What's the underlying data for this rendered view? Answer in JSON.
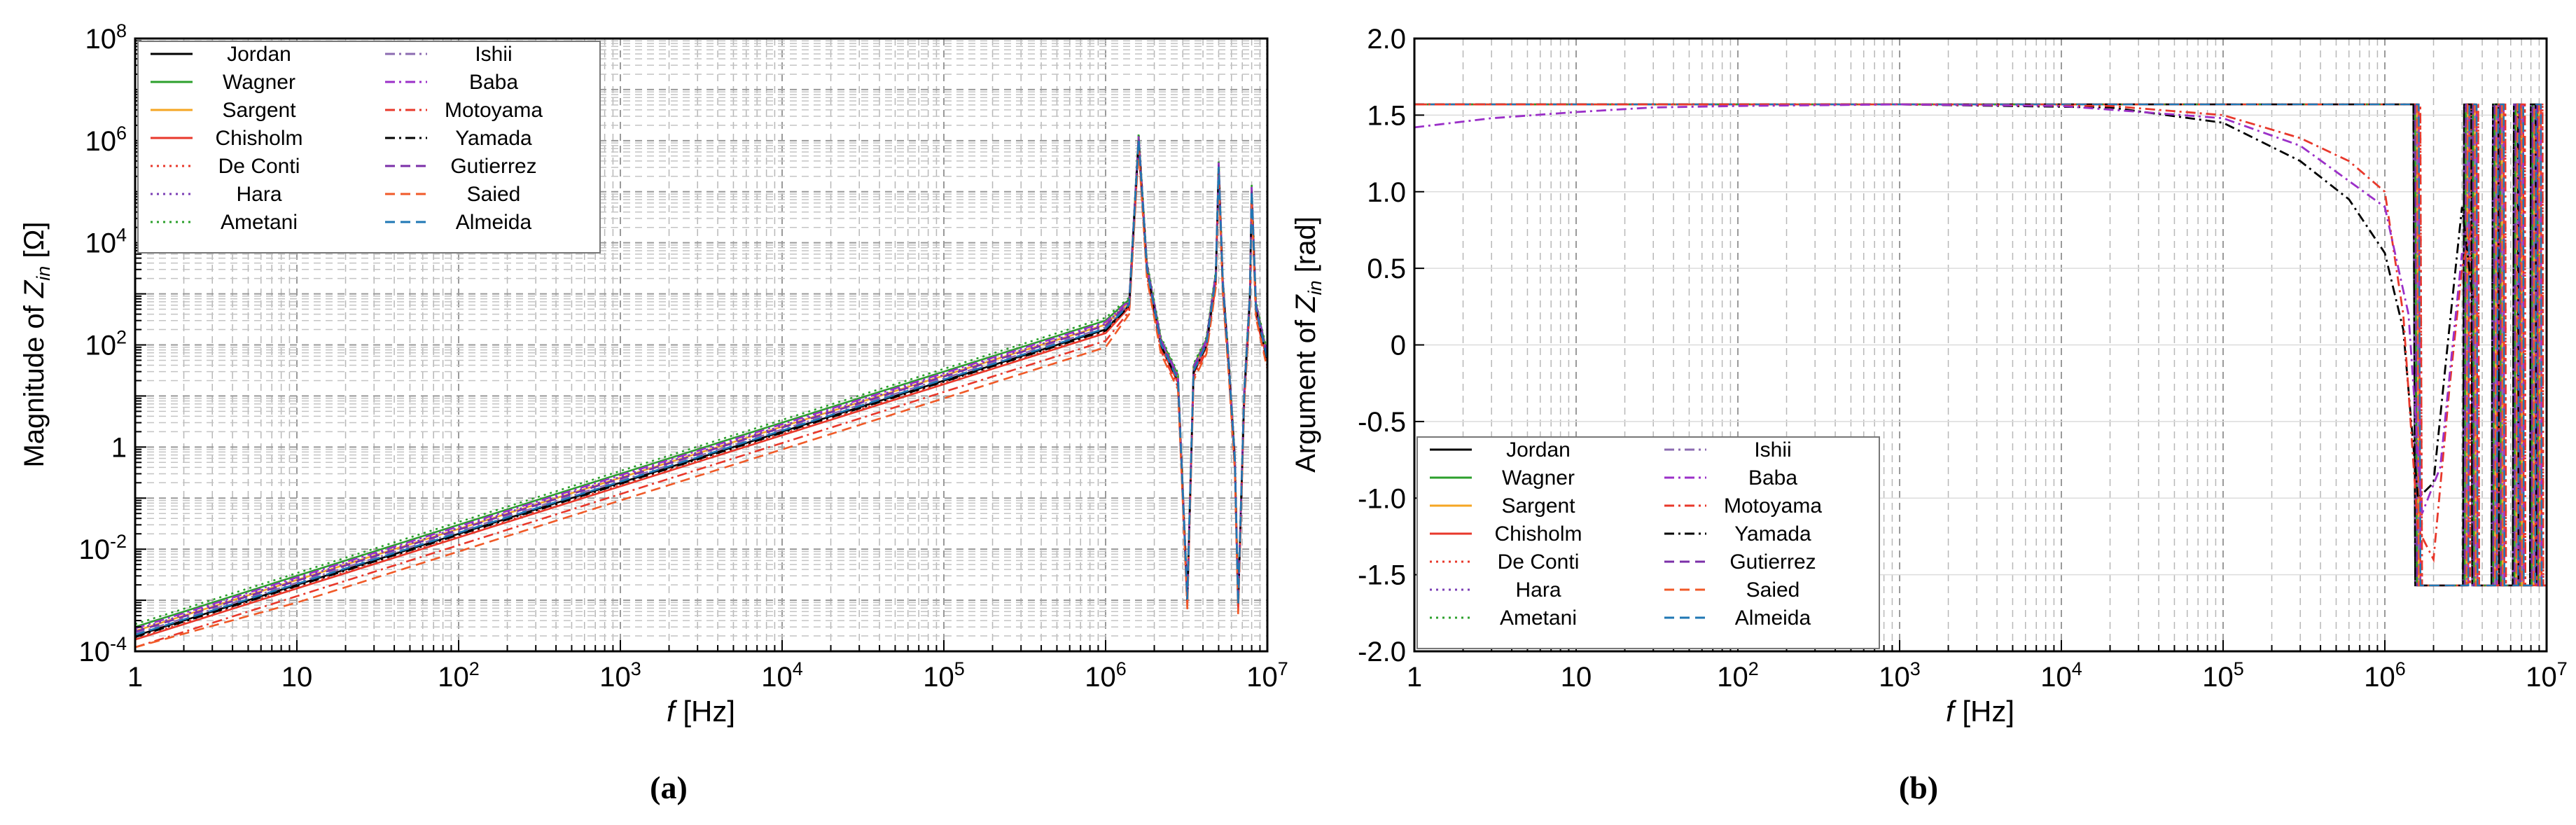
{
  "figure": {
    "caption_a": "(a)",
    "caption_b": "(b)"
  },
  "legend_items": [
    {
      "name": "Jordan",
      "color": "#000000",
      "dash": "solid"
    },
    {
      "name": "Wagner",
      "color": "#2ca02c",
      "dash": "solid"
    },
    {
      "name": "Sargent",
      "color": "#f5a623",
      "dash": "solid"
    },
    {
      "name": "Chisholm",
      "color": "#e8382b",
      "dash": "solid"
    },
    {
      "name": "De Conti",
      "color": "#e8382b",
      "dash": "dot"
    },
    {
      "name": "Hara",
      "color": "#7b3fb5",
      "dash": "dot"
    },
    {
      "name": "Ametani",
      "color": "#2ca02c",
      "dash": "dot"
    },
    {
      "name": "Ishii",
      "color": "#8c6bb1",
      "dash": "dashdot"
    },
    {
      "name": "Baba",
      "color": "#9b30c8",
      "dash": "dashdot"
    },
    {
      "name": "Motoyama",
      "color": "#e8382b",
      "dash": "dashdot"
    },
    {
      "name": "Yamada",
      "color": "#000000",
      "dash": "dashdot"
    },
    {
      "name": "Gutierrez",
      "color": "#7b2fa8",
      "dash": "dash"
    },
    {
      "name": "Saied",
      "color": "#f05a28",
      "dash": "dash"
    },
    {
      "name": "Almeida",
      "color": "#1f77b4",
      "dash": "dash"
    }
  ],
  "chart_data": [
    {
      "id": "a",
      "type": "line",
      "title": "",
      "xlabel_italic": "f",
      "xlabel_rest": " [Hz]",
      "ylabel_prefix": "Magnitude of ",
      "ylabel_var": "Z",
      "ylabel_sub": "in",
      "ylabel_suffix": " [Ω]",
      "xscale": "log",
      "yscale": "log",
      "xlim": [
        1,
        10000000
      ],
      "ylim": [
        0.0001,
        100000000
      ],
      "xticks": [
        {
          "v": 1,
          "base": "1",
          "exp": ""
        },
        {
          "v": 10,
          "base": "10",
          "exp": ""
        },
        {
          "v": 100,
          "base": "10",
          "exp": "2"
        },
        {
          "v": 1000,
          "base": "10",
          "exp": "3"
        },
        {
          "v": 10000,
          "base": "10",
          "exp": "4"
        },
        {
          "v": 100000,
          "base": "10",
          "exp": "5"
        },
        {
          "v": 1000000,
          "base": "10",
          "exp": "6"
        },
        {
          "v": 10000000,
          "base": "10",
          "exp": "7"
        }
      ],
      "yticks": [
        {
          "v": 0.0001,
          "base": "10",
          "exp": "-4"
        },
        {
          "v": 0.01,
          "base": "10",
          "exp": "-2"
        },
        {
          "v": 1,
          "base": "1",
          "exp": ""
        },
        {
          "v": 100,
          "base": "10",
          "exp": "2"
        },
        {
          "v": 10000,
          "base": "10",
          "exp": "4"
        },
        {
          "v": 1000000,
          "base": "10",
          "exp": "6"
        },
        {
          "v": 100000000,
          "base": "10",
          "exp": "8"
        }
      ],
      "legend_position": "top-left",
      "series_offsets": [
        1.0,
        1.5,
        1.25,
        0.85,
        0.9,
        1.3,
        1.7,
        1.1,
        1.4,
        0.6,
        0.95,
        1.2,
        0.45,
        1.05
      ],
      "base_curve": {
        "x": [
          1,
          10,
          100,
          1000,
          10000,
          100000,
          500000,
          1000000,
          1400000,
          1600000,
          1800000,
          2200000,
          2800000,
          3200000,
          3500000,
          4200000,
          4800000,
          5000000,
          5300000,
          5800000,
          6300000,
          6600000,
          7200000,
          7800000,
          8000000,
          8500000,
          10000000
        ],
        "y": [
          0.0002,
          0.002,
          0.02,
          0.2,
          2,
          20,
          100,
          200,
          600,
          1000000,
          3000,
          100,
          20,
          0.001,
          30,
          100,
          2000,
          300000,
          1500,
          30,
          0.5,
          0.0008,
          10,
          800,
          100000,
          500,
          50
        ]
      }
    },
    {
      "id": "b",
      "type": "line",
      "title": "",
      "xlabel_italic": "f",
      "xlabel_rest": " [Hz]",
      "ylabel_prefix": "Argument of ",
      "ylabel_var": "Z",
      "ylabel_sub": "in",
      "ylabel_suffix": " [rad]",
      "xscale": "log",
      "yscale": "linear",
      "xlim": [
        1,
        10000000
      ],
      "ylim": [
        -2.0,
        2.0
      ],
      "xticks": [
        {
          "v": 1,
          "base": "1",
          "exp": ""
        },
        {
          "v": 10,
          "base": "10",
          "exp": ""
        },
        {
          "v": 100,
          "base": "10",
          "exp": "2"
        },
        {
          "v": 1000,
          "base": "10",
          "exp": "3"
        },
        {
          "v": 10000,
          "base": "10",
          "exp": "4"
        },
        {
          "v": 100000,
          "base": "10",
          "exp": "5"
        },
        {
          "v": 1000000,
          "base": "10",
          "exp": "6"
        },
        {
          "v": 10000000,
          "base": "10",
          "exp": "7"
        }
      ],
      "yticks": [
        {
          "v": 2.0,
          "label": "2.0"
        },
        {
          "v": 1.5,
          "label": "1.5"
        },
        {
          "v": 1.0,
          "label": "1.0"
        },
        {
          "v": 0.5,
          "label": "0.5"
        },
        {
          "v": 0,
          "label": "0"
        },
        {
          "v": -0.5,
          "label": "-0.5"
        },
        {
          "v": -1.0,
          "label": "-1.0"
        },
        {
          "v": -1.5,
          "label": "-1.5"
        },
        {
          "v": -2.0,
          "label": "-2.0"
        }
      ],
      "legend_position": "bottom-left",
      "main_curve": {
        "x": [
          1,
          10,
          100,
          1000,
          10000,
          1580000,
          1600000,
          1620000,
          2500000,
          3200000,
          3250000,
          3600000,
          3650000,
          4800000,
          4900000,
          5300000,
          5350000,
          6500000,
          6600000,
          7000000,
          7050000,
          8300000,
          8400000,
          9000000,
          9100000,
          10000000
        ],
        "y": [
          1.57,
          1.57,
          1.57,
          1.57,
          1.57,
          1.57,
          0,
          -1.57,
          -1.57,
          -1.57,
          1.57,
          1.57,
          -1.57,
          -1.57,
          1.57,
          1.57,
          -1.57,
          -1.57,
          1.57,
          1.57,
          -1.57,
          -1.57,
          1.57,
          1.57,
          -1.57,
          -1.57
        ]
      },
      "droop_curves": [
        {
          "name": "Yamada",
          "x": [
            1,
            1000,
            20000,
            100000,
            300000,
            600000,
            1000000,
            1300000,
            1600000,
            2000000,
            2500000,
            3000000,
            3500000
          ],
          "y": [
            1.57,
            1.57,
            1.55,
            1.45,
            1.2,
            0.95,
            0.6,
            0.1,
            -1.0,
            -0.9,
            0.1,
            0.9,
            0.3
          ]
        },
        {
          "name": "Motoyama",
          "x": [
            1,
            1000,
            20000,
            100000,
            300000,
            600000,
            1000000,
            1300000,
            1600000,
            2000000,
            2500000,
            3000000,
            3500000
          ],
          "y": [
            1.57,
            1.57,
            1.56,
            1.5,
            1.35,
            1.2,
            1.0,
            0.2,
            -1.2,
            -1.4,
            -0.3,
            0.5,
            0.8
          ]
        },
        {
          "name": "Baba",
          "x": [
            1,
            3,
            10,
            30,
            100,
            1000,
            10000,
            100000,
            300000,
            1000000,
            1400000,
            1700000,
            2200000,
            3000000
          ],
          "y": [
            1.42,
            1.48,
            1.52,
            1.55,
            1.56,
            1.57,
            1.56,
            1.48,
            1.3,
            0.9,
            0.2,
            -1.1,
            -0.8,
            0.6
          ]
        }
      ]
    }
  ]
}
